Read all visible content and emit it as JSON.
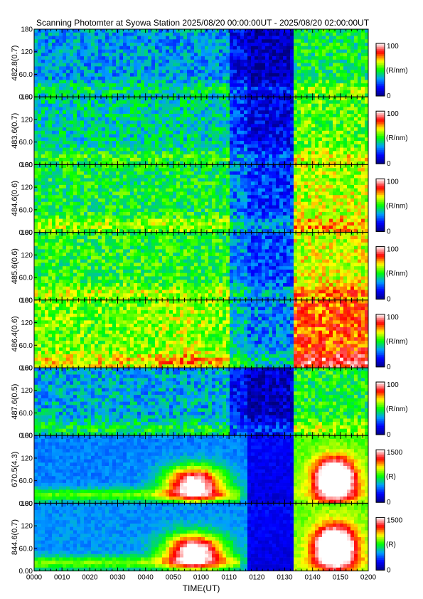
{
  "title": "Scanning Photomter at Syowa Station  2025/08/20 00:00:00UT - 2025/08/20 02:00:00UT",
  "chart_data": {
    "type": "heatmap",
    "xlabel": "TIME(UT)",
    "x_ticks": [
      "0000",
      "0010",
      "0020",
      "0030",
      "0040",
      "0050",
      "0100",
      "0110",
      "0120",
      "0130",
      "0140",
      "0150",
      "0200"
    ],
    "y_ticks": [
      "0.00",
      "60.0",
      "120",
      "180"
    ],
    "ylim": [
      0,
      180
    ],
    "colormap": [
      "#000080",
      "#0000ff",
      "#00a0ff",
      "#00ff00",
      "#ffff00",
      "#ff0000",
      "#ffffff"
    ],
    "panels": [
      {
        "ylabel": "482.8(0.7)",
        "cb_min": "0",
        "cb_max": "100",
        "cb_unit": "(R/nm)",
        "base": 0.33,
        "pattern": "weak"
      },
      {
        "ylabel": "483.6(0.7)",
        "cb_min": "0",
        "cb_max": "100",
        "cb_unit": "(R/nm)",
        "base": 0.4,
        "pattern": "mid"
      },
      {
        "ylabel": "484.6(0.6)",
        "cb_min": "0",
        "cb_max": "100",
        "cb_unit": "(R/nm)",
        "base": 0.48,
        "pattern": "mid"
      },
      {
        "ylabel": "485.6(0.6)",
        "cb_min": "0",
        "cb_max": "100",
        "cb_unit": "(R/nm)",
        "base": 0.5,
        "pattern": "mid"
      },
      {
        "ylabel": "486.4(0.6)",
        "cb_min": "0",
        "cb_max": "100",
        "cb_unit": "(R/nm)",
        "base": 0.56,
        "pattern": "strong"
      },
      {
        "ylabel": "487.6(0.5)",
        "cb_min": "0",
        "cb_max": "100",
        "cb_unit": "(R/nm)",
        "base": 0.35,
        "pattern": "weak"
      },
      {
        "ylabel": "670.5(4.3)",
        "cb_min": "0",
        "cb_max": "1500",
        "cb_unit": "(R)",
        "base": 0.3,
        "pattern": "aurora"
      },
      {
        "ylabel": "844.6(0.7)",
        "cb_min": "0",
        "cb_max": "1500",
        "cb_unit": "(R)",
        "base": 0.32,
        "pattern": "aurora"
      }
    ]
  }
}
